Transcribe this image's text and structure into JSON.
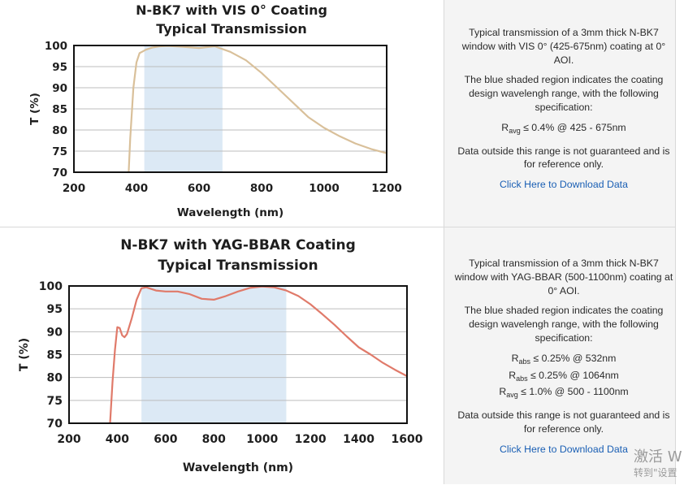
{
  "chart_data": [
    {
      "type": "line",
      "title": "N-BK7 with VIS 0° Coating",
      "subtitle": "Typical Transmission",
      "xlabel": "Wavelength (nm)",
      "ylabel": "T (%)",
      "xlim": [
        200,
        1200
      ],
      "ylim": [
        70,
        100
      ],
      "xticks": [
        "200",
        "400",
        "600",
        "800",
        "1000",
        "1200"
      ],
      "yticks": [
        "70",
        "75",
        "80",
        "85",
        "90",
        "95",
        "100"
      ],
      "shaded_range": [
        425,
        675
      ],
      "shade_color": "#dce9f5",
      "line_color": "#d9c09a",
      "grid": "horizontal",
      "series": [
        {
          "x": [
            375,
            380,
            390,
            400,
            410,
            420,
            430,
            450,
            475,
            500,
            550,
            600,
            650,
            700,
            750,
            800,
            850,
            900,
            950,
            1000,
            1050,
            1100,
            1150,
            1200
          ],
          "y": [
            70,
            78,
            90,
            96,
            98.2,
            98.6,
            99,
            99.5,
            99.8,
            99.9,
            99.7,
            99.4,
            99.8,
            98.5,
            96.5,
            93.5,
            90,
            86.5,
            83,
            80.5,
            78.5,
            76.8,
            75.5,
            74.5
          ]
        }
      ]
    },
    {
      "type": "line",
      "title": "N-BK7 with YAG-BBAR Coating",
      "subtitle": "Typical Transmission",
      "xlabel": "Wavelength (nm)",
      "ylabel": "T (%)",
      "xlim": [
        200,
        1600
      ],
      "ylim": [
        70,
        100
      ],
      "xticks": [
        "200",
        "400",
        "600",
        "800",
        "1000",
        "1200",
        "1400",
        "1600"
      ],
      "yticks": [
        "70",
        "75",
        "80",
        "85",
        "90",
        "95",
        "100"
      ],
      "shaded_range": [
        500,
        1100
      ],
      "shade_color": "#dce9f5",
      "line_color": "#e07a6a",
      "grid": "horizontal",
      "series": [
        {
          "x": [
            370,
            380,
            390,
            400,
            410,
            420,
            430,
            440,
            460,
            480,
            500,
            520,
            560,
            600,
            650,
            700,
            750,
            800,
            850,
            900,
            950,
            1000,
            1050,
            1100,
            1150,
            1200,
            1250,
            1300,
            1350,
            1400,
            1450,
            1500,
            1550,
            1600
          ],
          "y": [
            70,
            79,
            86,
            91,
            90.8,
            89.2,
            88.8,
            89.5,
            93,
            97,
            99.5,
            99.7,
            99,
            98.8,
            98.8,
            98.2,
            97.2,
            97,
            97.8,
            98.8,
            99.6,
            99.9,
            99.7,
            99,
            97.8,
            96,
            93.8,
            91.5,
            89,
            86.6,
            85,
            83.2,
            81.7,
            80.3
          ]
        }
      ]
    }
  ],
  "panel1": {
    "desc1": "Typical transmission of a 3mm thick N-BK7 window with VIS 0° (425-675nm) coating at 0° AOI.",
    "desc2": "The blue shaded region indicates the coating design wavelengh range, with the following specification:",
    "specs": [
      {
        "sym": "R",
        "sub": "avg",
        "text": " ≤ 0.4% @ 425 - 675nm"
      }
    ],
    "note": "Data outside this range is not guaranteed and is for reference only.",
    "link": "Click Here to Download Data"
  },
  "panel2": {
    "desc1": "Typical transmission of a 3mm thick N-BK7 window with YAG-BBAR (500-1100nm) coating at 0° AOI.",
    "desc2": "The blue shaded region indicates the coating design wavelengh range, with the following specification:",
    "specs": [
      {
        "sym": "R",
        "sub": "abs",
        "text": " ≤ 0.25% @ 532nm"
      },
      {
        "sym": "R",
        "sub": "abs",
        "text": " ≤ 0.25% @ 1064nm"
      },
      {
        "sym": "R",
        "sub": "avg",
        "text": " ≤ 1.0% @ 500 - 1100nm"
      }
    ],
    "note": "Data outside this range is not guaranteed and is for reference only.",
    "link": "Click Here to Download Data"
  },
  "watermark": {
    "line1": "激活 W",
    "line2": "转到\"设置"
  }
}
